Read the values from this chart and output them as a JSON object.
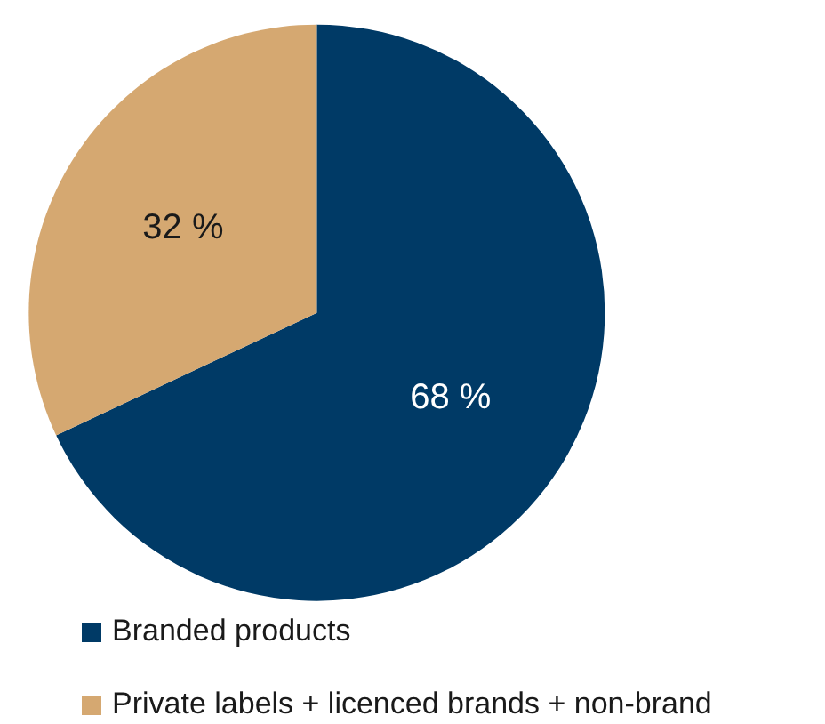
{
  "chart_data": {
    "type": "pie",
    "categories": [
      "Branded products",
      "Private labels + licenced brands + non-brand"
    ],
    "values": [
      68,
      32
    ],
    "colors": [
      "#003a66",
      "#d5a871"
    ],
    "value_labels": [
      "68 %",
      "32 %"
    ],
    "legend": "bottom"
  }
}
